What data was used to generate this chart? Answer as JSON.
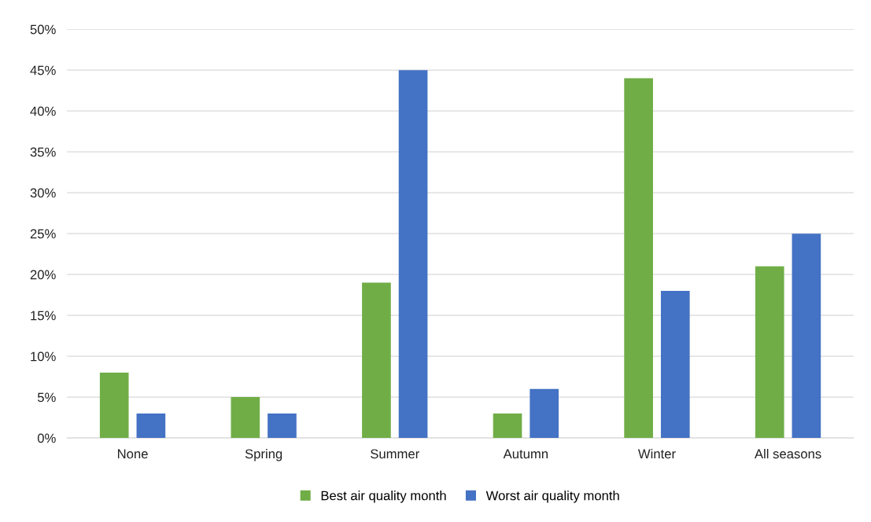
{
  "chart_data": {
    "type": "bar",
    "categories": [
      "None",
      "Spring",
      "Summer",
      "Autumn",
      "Winter",
      "All seasons"
    ],
    "series": [
      {
        "name": "Best air quality month",
        "color": "#70ad47",
        "values": [
          8,
          5,
          19,
          3,
          44,
          21
        ]
      },
      {
        "name": "Worst air quality month",
        "color": "#4472c4",
        "values": [
          3,
          3,
          45,
          6,
          18,
          25
        ]
      }
    ],
    "ylim": [
      0,
      50
    ],
    "yticks": [
      {
        "value": 0,
        "label": "0%"
      },
      {
        "value": 5,
        "label": "5%"
      },
      {
        "value": 10,
        "label": "10%"
      },
      {
        "value": 15,
        "label": "15%"
      },
      {
        "value": 20,
        "label": "20%"
      },
      {
        "value": 25,
        "label": "25%"
      },
      {
        "value": 30,
        "label": "30%"
      },
      {
        "value": 35,
        "label": "35%"
      },
      {
        "value": 40,
        "label": "40%"
      },
      {
        "value": 45,
        "label": "45%"
      },
      {
        "value": 50,
        "label": "50%"
      }
    ],
    "grid": "y",
    "legend": "bottom"
  }
}
